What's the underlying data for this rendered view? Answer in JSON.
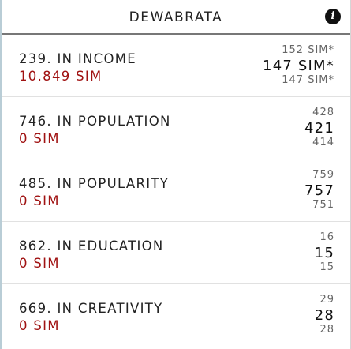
{
  "header": {
    "title": "DEWABRATA",
    "info_icon_glyph": "i",
    "info_icon": "info-icon"
  },
  "rows": [
    {
      "rank": "239. IN INCOME",
      "amount": "10.849 SIM",
      "prev": "152 SIM*",
      "current": "147 SIM*",
      "next": "147 SIM*"
    },
    {
      "rank": "746. IN POPULATION",
      "amount": "0 SIM",
      "prev": "428",
      "current": "421",
      "next": "414"
    },
    {
      "rank": "485. IN POPULARITY",
      "amount": "0 SIM",
      "prev": "759",
      "current": "757",
      "next": "751"
    },
    {
      "rank": "862. IN EDUCATION",
      "amount": "0 SIM",
      "prev": "16",
      "current": "15",
      "next": "15"
    },
    {
      "rank": "669. IN CREATIVITY",
      "amount": "0 SIM",
      "prev": "29",
      "current": "28",
      "next": "28"
    }
  ],
  "colors": {
    "amount": "#a01212",
    "left_border": "#b9cdd6",
    "header_border": "#777777"
  }
}
